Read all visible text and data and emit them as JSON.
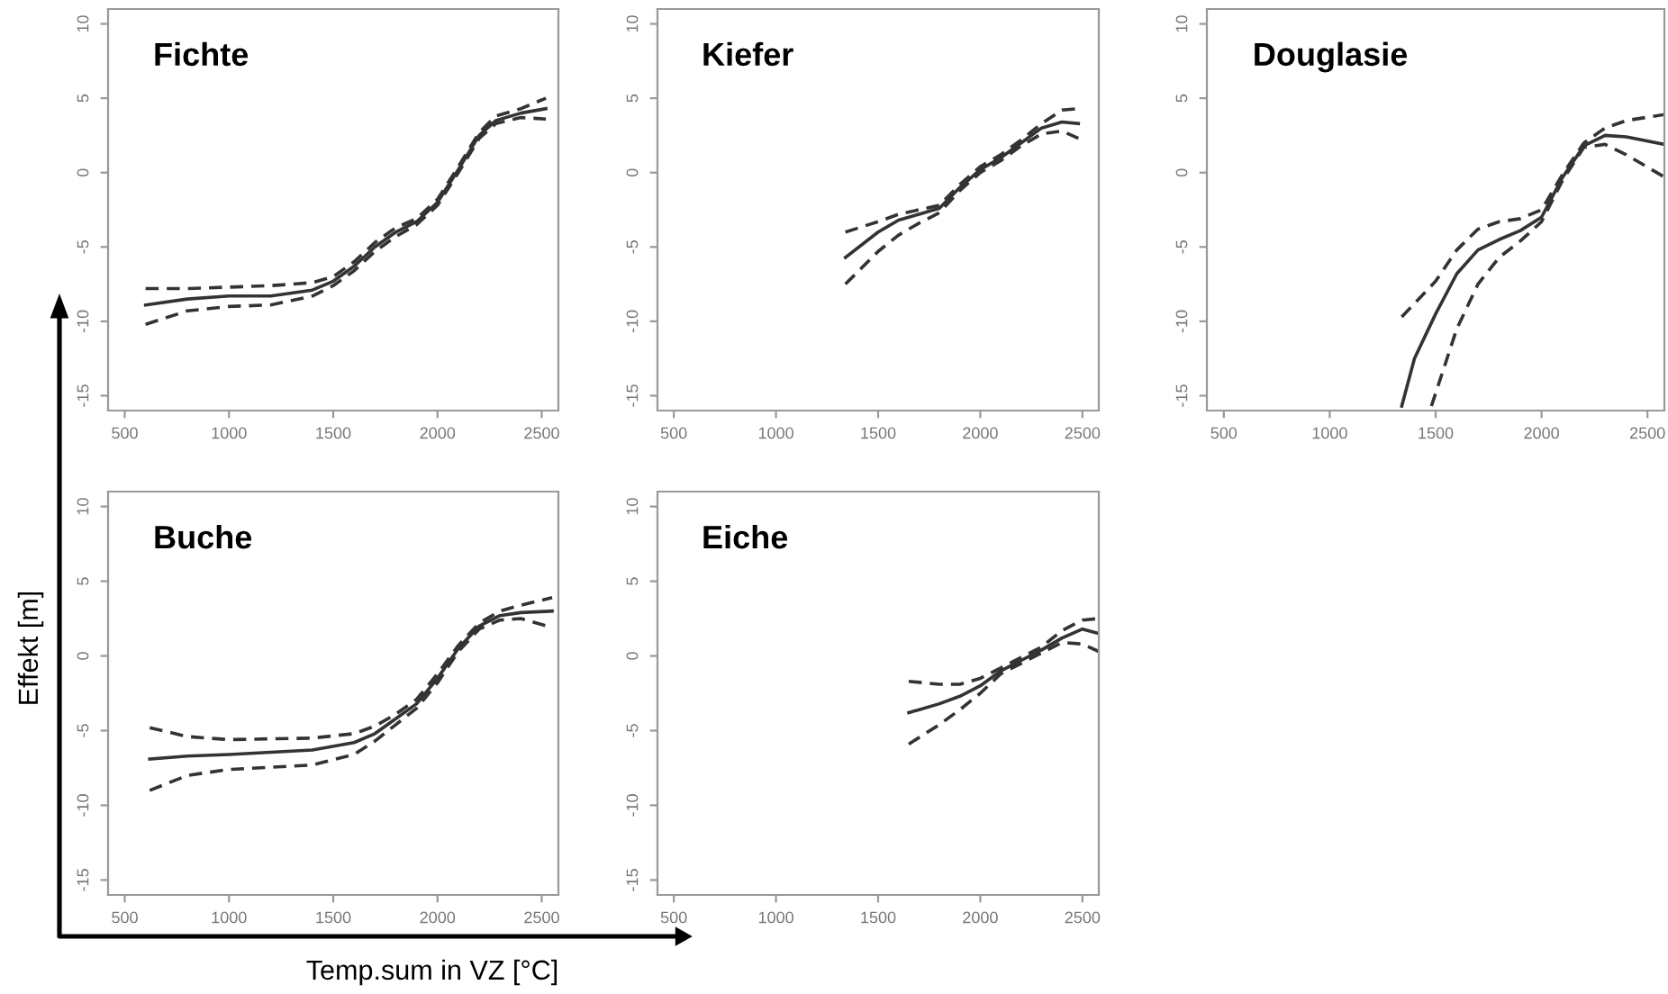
{
  "chart_data": [
    {
      "type": "line",
      "title": "Fichte",
      "xlim": [
        420,
        2580
      ],
      "ylim": [
        -16,
        11
      ],
      "xticks": [
        500,
        1000,
        1500,
        2000,
        2500
      ],
      "yticks": [
        -15,
        -10,
        -5,
        0,
        5,
        10
      ],
      "grid": false,
      "legend": false,
      "series": [
        {
          "color": "#333333",
          "line_style": "solid",
          "x": [
            600,
            800,
            1000,
            1200,
            1400,
            1500,
            1600,
            1700,
            1800,
            1900,
            2000,
            2100,
            2200,
            2280,
            2400,
            2520
          ],
          "values": [
            -8.9,
            -8.5,
            -8.3,
            -8.3,
            -7.9,
            -7.3,
            -6.3,
            -5.0,
            -4.0,
            -3.3,
            -2.0,
            0.2,
            2.5,
            3.5,
            4.0,
            4.3
          ]
        },
        {
          "color": "#333333",
          "line_style": "dashed",
          "x": [
            600,
            800,
            1000,
            1200,
            1400,
            1500,
            1600,
            1700,
            1800,
            1900,
            2000,
            2100,
            2200,
            2280,
            2400,
            2520
          ],
          "values": [
            -10.2,
            -9.3,
            -9.0,
            -8.9,
            -8.3,
            -7.6,
            -6.6,
            -5.3,
            -4.3,
            -3.5,
            -2.2,
            0.0,
            2.3,
            3.3,
            3.7,
            3.6
          ]
        },
        {
          "color": "#333333",
          "line_style": "dashed",
          "x": [
            600,
            800,
            1000,
            1200,
            1400,
            1500,
            1600,
            1700,
            1800,
            1900,
            2000,
            2100,
            2200,
            2280,
            2400,
            2520
          ],
          "values": [
            -7.8,
            -7.8,
            -7.7,
            -7.6,
            -7.4,
            -7.0,
            -6.0,
            -4.7,
            -3.7,
            -3.1,
            -1.8,
            0.4,
            2.7,
            3.8,
            4.3,
            5.0
          ]
        }
      ]
    },
    {
      "type": "line",
      "title": "Kiefer",
      "xlim": [
        420,
        2580
      ],
      "ylim": [
        -16,
        11
      ],
      "xticks": [
        500,
        1000,
        1500,
        2000,
        2500
      ],
      "yticks": [
        -15,
        -10,
        -5,
        0,
        5,
        10
      ],
      "grid": false,
      "legend": false,
      "series": [
        {
          "color": "#333333",
          "line_style": "solid",
          "x": [
            1340,
            1500,
            1600,
            1700,
            1800,
            1900,
            2000,
            2100,
            2200,
            2300,
            2400,
            2480
          ],
          "values": [
            -5.7,
            -4.0,
            -3.2,
            -2.8,
            -2.4,
            -1.0,
            0.2,
            1.0,
            2.0,
            3.0,
            3.4,
            3.3
          ]
        },
        {
          "color": "#333333",
          "line_style": "dashed",
          "x": [
            1340,
            1500,
            1600,
            1700,
            1800,
            1900,
            2000,
            2100,
            2200,
            2300,
            2400,
            2480
          ],
          "values": [
            -7.5,
            -5.3,
            -4.2,
            -3.4,
            -2.7,
            -1.2,
            0.0,
            0.8,
            1.8,
            2.6,
            2.8,
            2.3
          ]
        },
        {
          "color": "#333333",
          "line_style": "dashed",
          "x": [
            1340,
            1500,
            1600,
            1700,
            1800,
            1900,
            2000,
            2100,
            2200,
            2300,
            2400,
            2480
          ],
          "values": [
            -4.0,
            -3.3,
            -2.8,
            -2.5,
            -2.2,
            -0.8,
            0.4,
            1.2,
            2.2,
            3.3,
            4.2,
            4.3
          ]
        }
      ]
    },
    {
      "type": "line",
      "title": "Douglasie",
      "xlim": [
        420,
        2580
      ],
      "ylim": [
        -16,
        11
      ],
      "xticks": [
        500,
        1000,
        1500,
        2000,
        2500
      ],
      "yticks": [
        -15,
        -10,
        -5,
        0,
        5,
        10
      ],
      "grid": false,
      "legend": false,
      "series": [
        {
          "color": "#333333",
          "line_style": "solid",
          "x": [
            1340,
            1400,
            1500,
            1600,
            1700,
            1800,
            1900,
            2000,
            2100,
            2200,
            2300,
            2400,
            2580
          ],
          "values": [
            -15.7,
            -12.5,
            -9.5,
            -6.8,
            -5.2,
            -4.5,
            -3.9,
            -3.0,
            -0.3,
            1.8,
            2.5,
            2.4,
            1.9
          ]
        },
        {
          "color": "#333333",
          "line_style": "dashed",
          "x": [
            1480,
            1600,
            1700,
            1800,
            1900,
            2000,
            2100,
            2200,
            2300,
            2400,
            2580
          ],
          "values": [
            -15.7,
            -10.5,
            -7.5,
            -5.7,
            -4.6,
            -3.3,
            -0.5,
            1.7,
            1.9,
            1.2,
            -0.3
          ]
        },
        {
          "color": "#333333",
          "line_style": "dashed",
          "x": [
            1340,
            1400,
            1500,
            1600,
            1700,
            1800,
            1900,
            2000,
            2100,
            2200,
            2300,
            2400,
            2580
          ],
          "values": [
            -9.7,
            -8.8,
            -7.3,
            -5.2,
            -3.8,
            -3.3,
            -3.1,
            -2.5,
            -0.1,
            2.0,
            3.0,
            3.5,
            3.9
          ]
        }
      ]
    },
    {
      "type": "line",
      "title": "Buche",
      "xlabel": "Temp.sum in VZ [°C]",
      "ylabel": "Effekt [m]",
      "xlim": [
        420,
        2580
      ],
      "ylim": [
        -16,
        11
      ],
      "xticks": [
        500,
        1000,
        1500,
        2000,
        2500
      ],
      "yticks": [
        -15,
        -10,
        -5,
        0,
        5,
        10
      ],
      "grid": false,
      "legend": false,
      "series": [
        {
          "color": "#333333",
          "line_style": "solid",
          "x": [
            620,
            800,
            1000,
            1400,
            1600,
            1700,
            1800,
            1900,
            2000,
            2100,
            2200,
            2300,
            2400,
            2550
          ],
          "values": [
            -6.9,
            -6.7,
            -6.6,
            -6.3,
            -5.8,
            -5.2,
            -4.2,
            -3.2,
            -1.5,
            0.5,
            2.0,
            2.7,
            2.9,
            3.0
          ]
        },
        {
          "color": "#333333",
          "line_style": "dashed",
          "x": [
            620,
            800,
            1000,
            1400,
            1600,
            1700,
            1800,
            1900,
            2000,
            2100,
            2200,
            2300,
            2400,
            2550
          ],
          "values": [
            -9.0,
            -8.0,
            -7.6,
            -7.3,
            -6.6,
            -5.7,
            -4.6,
            -3.5,
            -1.8,
            0.3,
            1.8,
            2.4,
            2.5,
            1.9
          ]
        },
        {
          "color": "#333333",
          "line_style": "dashed",
          "x": [
            620,
            800,
            1000,
            1400,
            1600,
            1700,
            1800,
            1900,
            2000,
            2100,
            2200,
            2300,
            2400,
            2550
          ],
          "values": [
            -4.8,
            -5.4,
            -5.6,
            -5.5,
            -5.2,
            -4.7,
            -3.9,
            -2.9,
            -1.2,
            0.7,
            2.2,
            3.0,
            3.4,
            3.9
          ]
        }
      ]
    },
    {
      "type": "line",
      "title": "Eiche",
      "xlim": [
        420,
        2580
      ],
      "ylim": [
        -16,
        11
      ],
      "xticks": [
        500,
        1000,
        1500,
        2000,
        2500
      ],
      "yticks": [
        -15,
        -10,
        -5,
        0,
        5,
        10
      ],
      "grid": false,
      "legend": false,
      "series": [
        {
          "color": "#333333",
          "line_style": "solid",
          "x": [
            1650,
            1800,
            1900,
            2000,
            2100,
            2200,
            2300,
            2400,
            2500,
            2580
          ],
          "values": [
            -3.8,
            -3.2,
            -2.7,
            -2.0,
            -1.0,
            -0.3,
            0.4,
            1.2,
            1.8,
            1.5
          ]
        },
        {
          "color": "#333333",
          "line_style": "dashed",
          "x": [
            1650,
            1800,
            1900,
            2000,
            2100,
            2200,
            2300,
            2400,
            2500,
            2580
          ],
          "values": [
            -5.9,
            -4.6,
            -3.6,
            -2.5,
            -1.2,
            -0.5,
            0.2,
            0.9,
            0.8,
            0.3
          ]
        },
        {
          "color": "#333333",
          "line_style": "dashed",
          "x": [
            1650,
            1800,
            1900,
            2000,
            2100,
            2200,
            2300,
            2400,
            2500,
            2580
          ],
          "values": [
            -1.7,
            -1.9,
            -1.9,
            -1.5,
            -0.8,
            -0.1,
            0.6,
            1.7,
            2.4,
            2.5
          ]
        }
      ]
    }
  ]
}
